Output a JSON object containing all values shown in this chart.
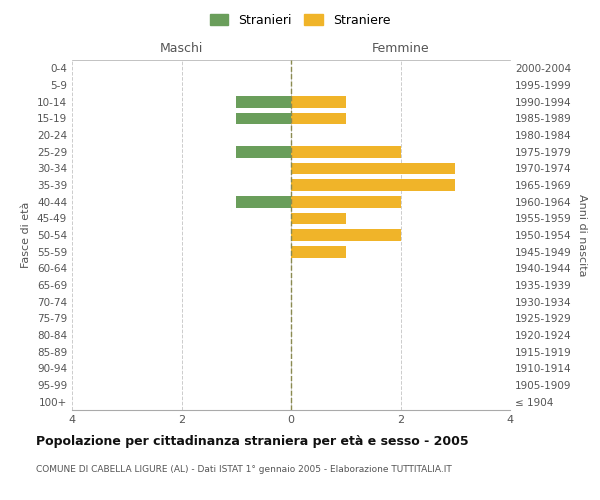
{
  "age_groups": [
    "100+",
    "95-99",
    "90-94",
    "85-89",
    "80-84",
    "75-79",
    "70-74",
    "65-69",
    "60-64",
    "55-59",
    "50-54",
    "45-49",
    "40-44",
    "35-39",
    "30-34",
    "25-29",
    "20-24",
    "15-19",
    "10-14",
    "5-9",
    "0-4"
  ],
  "birth_years": [
    "≤ 1904",
    "1905-1909",
    "1910-1914",
    "1915-1919",
    "1920-1924",
    "1925-1929",
    "1930-1934",
    "1935-1939",
    "1940-1944",
    "1945-1949",
    "1950-1954",
    "1955-1959",
    "1960-1964",
    "1965-1969",
    "1970-1974",
    "1975-1979",
    "1980-1984",
    "1985-1989",
    "1990-1994",
    "1995-1999",
    "2000-2004"
  ],
  "maschi": [
    0,
    0,
    0,
    0,
    0,
    0,
    0,
    0,
    0,
    0,
    0,
    0,
    1,
    0,
    0,
    1,
    0,
    1,
    1,
    0,
    0
  ],
  "femmine": [
    0,
    0,
    0,
    0,
    0,
    0,
    0,
    0,
    0,
    1,
    2,
    1,
    2,
    3,
    3,
    2,
    0,
    1,
    1,
    0,
    0
  ],
  "color_maschi": "#6a9e5b",
  "color_femmine": "#f0b429",
  "title": "Popolazione per cittadinanza straniera per età e sesso - 2005",
  "subtitle": "COMUNE DI CABELLA LIGURE (AL) - Dati ISTAT 1° gennaio 2005 - Elaborazione TUTTITALIA.IT",
  "label_maschi": "Maschi",
  "label_femmine": "Femmine",
  "ylabel_left": "Fasce di età",
  "ylabel_right": "Anni di nascita",
  "legend_maschi": "Stranieri",
  "legend_femmine": "Straniere",
  "xlim": 4,
  "background_color": "#ffffff",
  "grid_color": "#cccccc",
  "spine_color": "#aaaaaa",
  "dashed_line_color": "#8a8a50"
}
